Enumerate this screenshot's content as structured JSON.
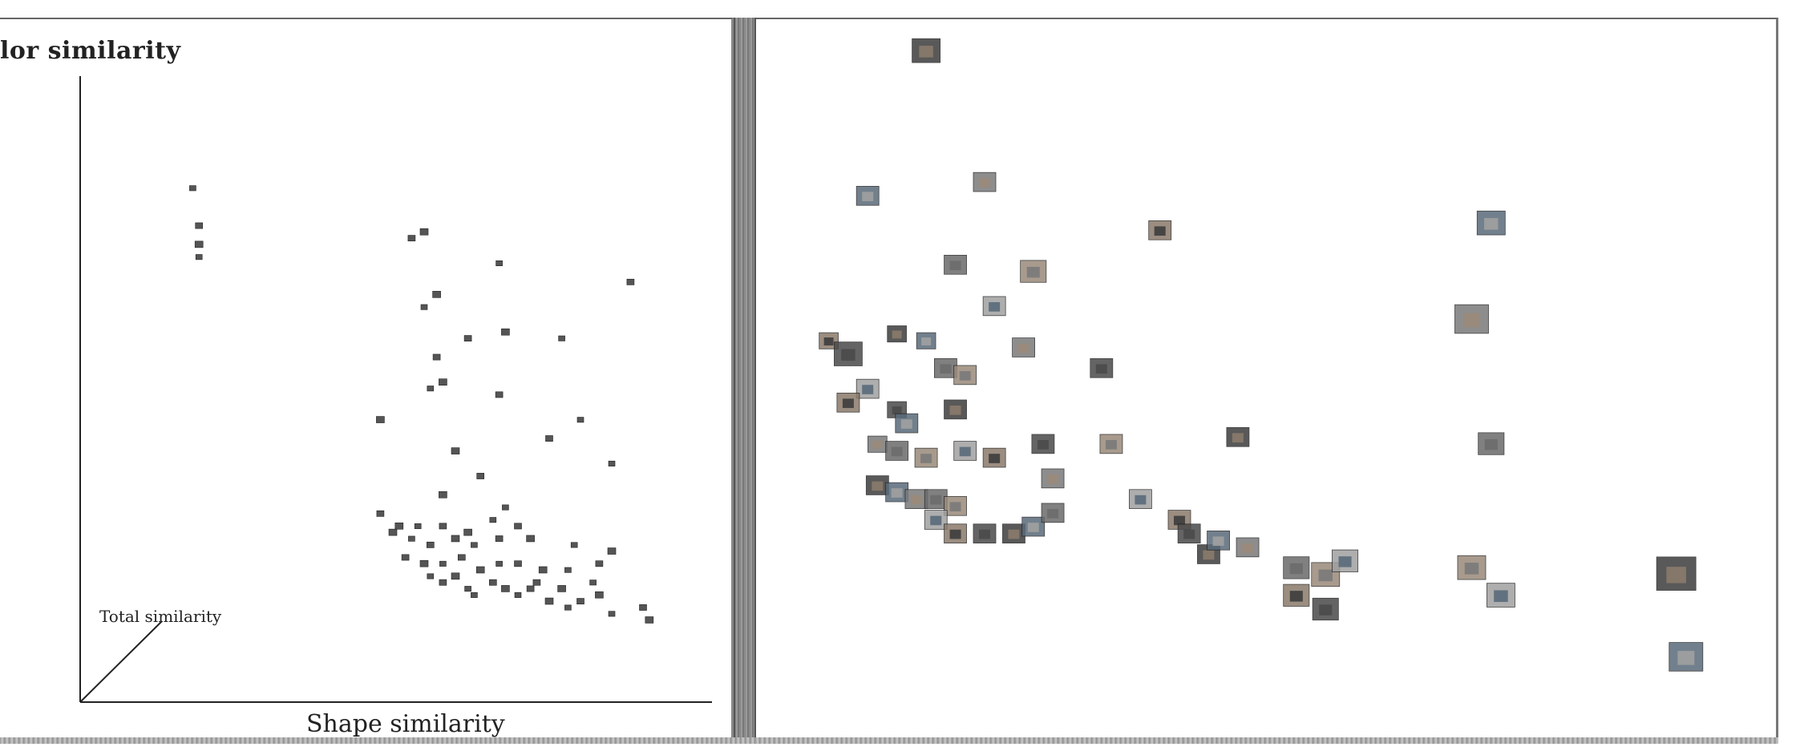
{
  "chart_data": [
    {
      "type": "scatter",
      "xlabel": "Shape similarity",
      "ylabel": "lor similarity",
      "zlabel": "Total similarity",
      "xlim": [
        0,
        100
      ],
      "ylim": [
        0,
        100
      ],
      "grid": false,
      "points": [
        {
          "x": 18,
          "y": 82
        },
        {
          "x": 19,
          "y": 76
        },
        {
          "x": 19,
          "y": 73
        },
        {
          "x": 19,
          "y": 71
        },
        {
          "x": 53,
          "y": 74
        },
        {
          "x": 55,
          "y": 75
        },
        {
          "x": 67,
          "y": 70
        },
        {
          "x": 88,
          "y": 67
        },
        {
          "x": 57,
          "y": 65
        },
        {
          "x": 55,
          "y": 63
        },
        {
          "x": 62,
          "y": 58
        },
        {
          "x": 68,
          "y": 59
        },
        {
          "x": 77,
          "y": 58
        },
        {
          "x": 57,
          "y": 55
        },
        {
          "x": 58,
          "y": 51
        },
        {
          "x": 56,
          "y": 50
        },
        {
          "x": 67,
          "y": 49
        },
        {
          "x": 48,
          "y": 45
        },
        {
          "x": 80,
          "y": 45
        },
        {
          "x": 75,
          "y": 42
        },
        {
          "x": 60,
          "y": 40
        },
        {
          "x": 85,
          "y": 38
        },
        {
          "x": 64,
          "y": 36
        },
        {
          "x": 58,
          "y": 33
        },
        {
          "x": 68,
          "y": 31
        },
        {
          "x": 48,
          "y": 30
        },
        {
          "x": 51,
          "y": 28
        },
        {
          "x": 54,
          "y": 28
        },
        {
          "x": 58,
          "y": 28
        },
        {
          "x": 62,
          "y": 27
        },
        {
          "x": 66,
          "y": 29
        },
        {
          "x": 70,
          "y": 28
        },
        {
          "x": 50,
          "y": 27
        },
        {
          "x": 53,
          "y": 26
        },
        {
          "x": 56,
          "y": 25
        },
        {
          "x": 60,
          "y": 26
        },
        {
          "x": 63,
          "y": 25
        },
        {
          "x": 67,
          "y": 26
        },
        {
          "x": 72,
          "y": 26
        },
        {
          "x": 79,
          "y": 25
        },
        {
          "x": 52,
          "y": 23
        },
        {
          "x": 55,
          "y": 22
        },
        {
          "x": 58,
          "y": 22
        },
        {
          "x": 61,
          "y": 23
        },
        {
          "x": 64,
          "y": 21
        },
        {
          "x": 67,
          "y": 22
        },
        {
          "x": 70,
          "y": 22
        },
        {
          "x": 74,
          "y": 21
        },
        {
          "x": 78,
          "y": 21
        },
        {
          "x": 83,
          "y": 22
        },
        {
          "x": 85,
          "y": 24
        },
        {
          "x": 56,
          "y": 20
        },
        {
          "x": 58,
          "y": 19
        },
        {
          "x": 60,
          "y": 20
        },
        {
          "x": 62,
          "y": 18
        },
        {
          "x": 66,
          "y": 19
        },
        {
          "x": 68,
          "y": 18
        },
        {
          "x": 70,
          "y": 17
        },
        {
          "x": 72,
          "y": 18
        },
        {
          "x": 75,
          "y": 16
        },
        {
          "x": 78,
          "y": 15
        },
        {
          "x": 80,
          "y": 16
        },
        {
          "x": 83,
          "y": 17
        },
        {
          "x": 85,
          "y": 14
        },
        {
          "x": 90,
          "y": 15
        },
        {
          "x": 91,
          "y": 13
        },
        {
          "x": 63,
          "y": 17
        },
        {
          "x": 73,
          "y": 19
        },
        {
          "x": 77,
          "y": 18
        },
        {
          "x": 82,
          "y": 19
        }
      ]
    },
    {
      "type": "scatter",
      "xlim": [
        0,
        100
      ],
      "ylim": [
        0,
        100
      ],
      "grid": false,
      "points": [
        {
          "x": 14,
          "y": 97,
          "size": 2.5
        },
        {
          "x": 8,
          "y": 76,
          "size": 2
        },
        {
          "x": 20,
          "y": 78,
          "size": 2
        },
        {
          "x": 17,
          "y": 66,
          "size": 2
        },
        {
          "x": 25,
          "y": 65,
          "size": 2.3
        },
        {
          "x": 21,
          "y": 60,
          "size": 2
        },
        {
          "x": 4,
          "y": 55,
          "size": 1.7
        },
        {
          "x": 6,
          "y": 53,
          "size": 2.5
        },
        {
          "x": 11,
          "y": 56,
          "size": 1.7
        },
        {
          "x": 14,
          "y": 55,
          "size": 1.7
        },
        {
          "x": 24,
          "y": 54,
          "size": 2
        },
        {
          "x": 16,
          "y": 51,
          "size": 2
        },
        {
          "x": 18,
          "y": 50,
          "size": 2
        },
        {
          "x": 8,
          "y": 48,
          "size": 2
        },
        {
          "x": 6,
          "y": 46,
          "size": 2
        },
        {
          "x": 11,
          "y": 45,
          "size": 1.7
        },
        {
          "x": 17,
          "y": 45,
          "size": 2
        },
        {
          "x": 12,
          "y": 43,
          "size": 2
        },
        {
          "x": 9,
          "y": 40,
          "size": 1.7
        },
        {
          "x": 11,
          "y": 39,
          "size": 2
        },
        {
          "x": 14,
          "y": 38,
          "size": 2
        },
        {
          "x": 18,
          "y": 39,
          "size": 2
        },
        {
          "x": 21,
          "y": 38,
          "size": 2
        },
        {
          "x": 26,
          "y": 40,
          "size": 2
        },
        {
          "x": 9,
          "y": 34,
          "size": 2
        },
        {
          "x": 11,
          "y": 33,
          "size": 2
        },
        {
          "x": 13,
          "y": 32,
          "size": 2
        },
        {
          "x": 15,
          "y": 32,
          "size": 2
        },
        {
          "x": 17,
          "y": 31,
          "size": 2
        },
        {
          "x": 15,
          "y": 29,
          "size": 2
        },
        {
          "x": 17,
          "y": 27,
          "size": 2
        },
        {
          "x": 20,
          "y": 27,
          "size": 2
        },
        {
          "x": 23,
          "y": 27,
          "size": 2
        },
        {
          "x": 25,
          "y": 28,
          "size": 2
        },
        {
          "x": 27,
          "y": 35,
          "size": 2
        },
        {
          "x": 27,
          "y": 30,
          "size": 2
        },
        {
          "x": 33,
          "y": 40,
          "size": 2
        },
        {
          "x": 36,
          "y": 32,
          "size": 2
        },
        {
          "x": 40,
          "y": 29,
          "size": 2
        },
        {
          "x": 41,
          "y": 27,
          "size": 2
        },
        {
          "x": 43,
          "y": 24,
          "size": 2
        },
        {
          "x": 44,
          "y": 26,
          "size": 2
        },
        {
          "x": 47,
          "y": 25,
          "size": 2
        },
        {
          "x": 52,
          "y": 22,
          "size": 2.3
        },
        {
          "x": 55,
          "y": 21,
          "size": 2.5
        },
        {
          "x": 57,
          "y": 23,
          "size": 2.3
        },
        {
          "x": 52,
          "y": 18,
          "size": 2.3
        },
        {
          "x": 55,
          "y": 16,
          "size": 2.3
        },
        {
          "x": 46,
          "y": 41,
          "size": 2
        },
        {
          "x": 72,
          "y": 72,
          "size": 2.5
        },
        {
          "x": 70,
          "y": 58,
          "size": 3
        },
        {
          "x": 72,
          "y": 40,
          "size": 2.3
        },
        {
          "x": 70,
          "y": 22,
          "size": 2.5
        },
        {
          "x": 73,
          "y": 18,
          "size": 2.5
        },
        {
          "x": 38,
          "y": 71,
          "size": 2
        },
        {
          "x": 32,
          "y": 51,
          "size": 2
        },
        {
          "x": 91,
          "y": 21,
          "size": 3.5
        },
        {
          "x": 92,
          "y": 9,
          "size": 3
        }
      ]
    }
  ]
}
